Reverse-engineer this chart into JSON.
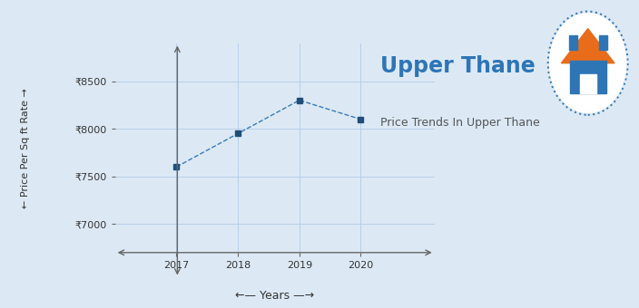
{
  "title": "Upper Thane",
  "subtitle": "Price Trends In Upper Thane",
  "xlabel": "←— Years —→",
  "ylabel": "← Price Per Sq ft Rate →",
  "years": [
    2017,
    2018,
    2019,
    2020
  ],
  "values": [
    7600,
    7950,
    8300,
    8100
  ],
  "ylim": [
    6700,
    8900
  ],
  "xlim": [
    2016.0,
    2021.2
  ],
  "yticks": [
    7000,
    7500,
    8000,
    8500
  ],
  "ytick_labels": [
    "₹7000",
    "₹7500",
    "₹8000",
    "₹8500"
  ],
  "line_color": "#3a7ab5",
  "marker_color": "#1f4e79",
  "bg_color": "#dce9f5",
  "grid_color": "#b8cfe8",
  "title_color": "#2e75b6",
  "subtitle_color": "#555555",
  "axis_color": "#666666",
  "title_fontsize": 17,
  "subtitle_fontsize": 9,
  "ylabel_fontsize": 8,
  "xlabel_fontsize": 9,
  "tick_fontsize": 8,
  "logo_circle_color": "#3a7ab5",
  "logo_roof_color": "#e86c1a",
  "logo_wall_color": "#2e75b6"
}
